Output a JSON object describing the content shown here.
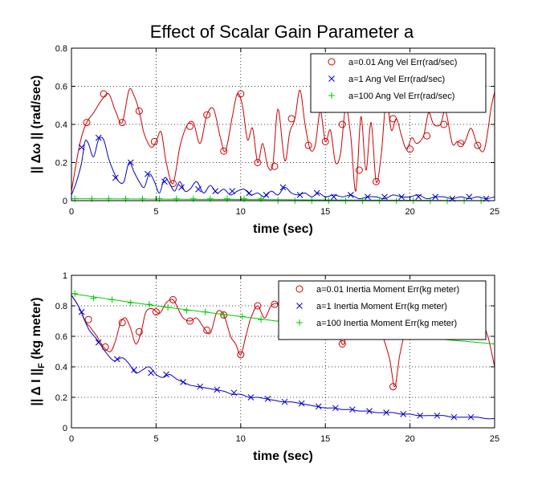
{
  "figure": {
    "title": "Effect of Scalar Gain Parameter a"
  },
  "chart_data": [
    {
      "type": "line",
      "title": "Effect of Scalar Gain Parameter a",
      "xlabel": "time (sec)",
      "ylabel": "|| Δω || (rad/sec)",
      "xlim": [
        0,
        25
      ],
      "ylim": [
        0,
        0.8
      ],
      "xticks": [
        "0",
        "5",
        "10",
        "15",
        "20",
        "25"
      ],
      "yticks": [
        "0",
        "0.2",
        "0.4",
        "0.6",
        "0.8"
      ],
      "grid": true,
      "legend_position": "top-right",
      "series": [
        {
          "name": "a=0.01 Ang Vel Err(rad/sec)",
          "color": "#cc0000",
          "marker": "circle",
          "x": [
            0,
            0.5,
            0.9,
            1.3,
            1.8,
            2.2,
            2.6,
            3.0,
            3.4,
            3.7,
            4.0,
            4.3,
            4.7,
            5.0,
            5.3,
            5.6,
            6.0,
            6.4,
            6.8,
            7.2,
            7.6,
            8.0,
            8.4,
            8.8,
            9.1,
            9.5,
            9.8,
            10.1,
            10.4,
            10.7,
            11.0,
            11.3,
            11.6,
            11.9,
            12.2,
            12.6,
            12.9,
            13.2,
            13.5,
            13.8,
            14.1,
            14.4,
            14.7,
            15.0,
            15.3,
            15.6,
            15.9,
            16.2,
            16.5,
            16.8,
            17.1,
            17.4,
            17.7,
            18.0,
            18.3,
            18.6,
            18.9,
            19.2,
            19.5,
            19.8,
            20.1,
            20.4,
            20.8,
            21.1,
            21.4,
            21.8,
            22.1,
            22.5,
            22.8,
            23.2,
            23.6,
            24.0,
            24.4,
            24.8,
            25.0
          ],
          "y": [
            0.05,
            0.3,
            0.41,
            0.46,
            0.53,
            0.56,
            0.47,
            0.41,
            0.58,
            0.55,
            0.47,
            0.35,
            0.28,
            0.31,
            0.36,
            0.2,
            0.09,
            0.28,
            0.39,
            0.41,
            0.3,
            0.45,
            0.48,
            0.33,
            0.26,
            0.44,
            0.56,
            0.5,
            0.32,
            0.38,
            0.2,
            0.3,
            0.18,
            0.19,
            0.48,
            0.21,
            0.36,
            0.43,
            0.58,
            0.4,
            0.27,
            0.29,
            0.47,
            0.31,
            0.37,
            0.2,
            0.25,
            0.49,
            0.34,
            0.05,
            0.44,
            0.16,
            0.41,
            0.1,
            0.24,
            0.53,
            0.37,
            0.43,
            0.34,
            0.27,
            0.33,
            0.3,
            0.34,
            0.46,
            0.4,
            0.4,
            0.47,
            0.3,
            0.31,
            0.3,
            0.38,
            0.29,
            0.27,
            0.49,
            0.57
          ],
          "marker_x": [
            0.9,
            1.9,
            3.0,
            4.0,
            4.9,
            6.0,
            7.0,
            8.0,
            9.0,
            10.0,
            11.0,
            12.0,
            13.0,
            14.0,
            15.0,
            16.0,
            17.0,
            18.0,
            19.0,
            20.0,
            21.0,
            22.0,
            23.0,
            24.0
          ],
          "marker_y": [
            0.41,
            0.56,
            0.41,
            0.47,
            0.31,
            0.09,
            0.39,
            0.45,
            0.26,
            0.56,
            0.2,
            0.18,
            0.43,
            0.29,
            0.31,
            0.4,
            0.16,
            0.1,
            0.43,
            0.27,
            0.34,
            0.4,
            0.3,
            0.29
          ]
        },
        {
          "name": "a=1 Ang Vel Err(rad/sec)",
          "color": "#0000cc",
          "marker": "x",
          "x": [
            0,
            0.3,
            0.6,
            0.8,
            1.0,
            1.3,
            1.6,
            1.9,
            2.2,
            2.5,
            2.8,
            3.1,
            3.4,
            3.7,
            4.0,
            4.3,
            4.6,
            4.9,
            5.2,
            5.5,
            5.8,
            6.1,
            6.4,
            6.7,
            7.0,
            7.4,
            7.8,
            8.2,
            8.6,
            9.0,
            9.4,
            9.8,
            10.2,
            10.6,
            11.0,
            11.4,
            11.8,
            12.2,
            12.6,
            13.0,
            13.4,
            13.8,
            14.2,
            14.6,
            15.0,
            15.5,
            16.0,
            16.5,
            17.0,
            17.5,
            18.0,
            18.5,
            19.0,
            19.5,
            20.0,
            20.5,
            21.0,
            21.5,
            22.0,
            22.5,
            23.0,
            23.5,
            24.0,
            24.5,
            25.0
          ],
          "y": [
            0.03,
            0.1,
            0.2,
            0.31,
            0.3,
            0.23,
            0.32,
            0.32,
            0.22,
            0.15,
            0.1,
            0.1,
            0.2,
            0.15,
            0.1,
            0.07,
            0.14,
            0.1,
            0.04,
            0.12,
            0.09,
            0.05,
            0.1,
            0.05,
            0.06,
            0.1,
            0.04,
            0.08,
            0.04,
            0.06,
            0.03,
            0.05,
            0.06,
            0.03,
            0.04,
            0.02,
            0.05,
            0.03,
            0.07,
            0.04,
            0.03,
            0.04,
            0.02,
            0.04,
            0.02,
            0.03,
            0.02,
            0.03,
            0.01,
            0.02,
            0.02,
            0.01,
            0.03,
            0.02,
            0.02,
            0.03,
            0.01,
            0.02,
            0.02,
            0.01,
            0.02,
            0.01,
            0.02,
            0.01,
            0.02
          ],
          "marker_x": [
            0.6,
            1.6,
            2.6,
            3.5,
            4.5,
            5.5,
            6.5,
            7.5,
            8.5,
            9.5,
            10.5,
            11.5,
            12.5,
            13.5,
            14.5,
            15.5,
            16.5,
            17.5,
            18.5,
            19.5,
            20.5,
            21.5,
            22.5,
            23.5,
            24.5
          ],
          "marker_y": [
            0.28,
            0.33,
            0.12,
            0.2,
            0.14,
            0.1,
            0.07,
            0.06,
            0.05,
            0.05,
            0.04,
            0.03,
            0.07,
            0.03,
            0.04,
            0.02,
            0.03,
            0.02,
            0.02,
            0.02,
            0.02,
            0.02,
            0.01,
            0.02,
            0.01
          ]
        },
        {
          "name": "a=100 Ang Vel Err(rad/sec)",
          "color": "#00cc00",
          "marker": "plus",
          "x": [
            0,
            25
          ],
          "y": [
            0.01,
            0.0
          ],
          "marker_x": [
            0.2,
            1.2,
            2.2,
            3.2,
            4.2,
            5.2,
            6.2,
            7.2,
            8.2,
            9.2,
            10.2,
            11.2,
            12.2,
            13.2,
            14.2,
            15.2,
            16.2,
            17.2,
            18.2,
            19.2,
            20.2,
            21.2,
            22.2,
            23.2,
            24.2
          ],
          "marker_y": [
            0.01,
            0.01,
            0.01,
            0.01,
            0.01,
            0.01,
            0.01,
            0.01,
            0.01,
            0.01,
            0.01,
            0.01,
            0.0,
            0.0,
            0.0,
            0.0,
            0.0,
            0.0,
            0.0,
            0.0,
            0.0,
            0.0,
            0.0,
            0.0,
            0.0
          ]
        }
      ]
    },
    {
      "type": "line",
      "title": "",
      "xlabel": "time (sec)",
      "ylabel": "|| Δ I ||F (kg meter)",
      "ylabel_main": "|| Δ I ||",
      "ylabel_sub": "F",
      "ylabel_unit": " (kg meter)",
      "xlim": [
        0,
        25
      ],
      "ylim": [
        0,
        1
      ],
      "xticks": [
        "0",
        "5",
        "10",
        "15",
        "20",
        "25"
      ],
      "yticks": [
        "0",
        "0.2",
        "0.4",
        "0.6",
        "0.8",
        "1"
      ],
      "grid": true,
      "legend_position": "top-right",
      "series": [
        {
          "name": "a=0.01 Inertia Moment Err(kg meter)",
          "color": "#cc0000",
          "marker": "circle",
          "x": [
            0,
            0.4,
            0.8,
            1.1,
            1.5,
            1.9,
            2.3,
            2.6,
            2.9,
            3.2,
            3.5,
            3.8,
            4.1,
            4.4,
            4.8,
            5.2,
            5.6,
            6.0,
            6.3,
            6.6,
            7.0,
            7.4,
            7.8,
            8.2,
            8.6,
            9.0,
            9.4,
            9.7,
            10.0,
            10.3,
            10.6,
            11.0,
            11.4,
            11.8,
            12.2,
            12.6,
            13.0,
            13.4,
            13.8,
            14.2,
            14.6,
            15.0,
            15.4,
            15.8,
            16.1,
            16.4,
            16.8,
            17.2,
            17.6,
            18.0,
            18.4,
            18.8,
            19.1,
            19.4,
            19.8,
            20.2,
            20.6,
            21.0,
            21.4,
            21.8,
            22.2,
            22.6,
            23.0,
            23.4,
            23.8,
            24.2,
            24.6,
            25.0
          ],
          "y": [
            0.87,
            0.8,
            0.7,
            0.66,
            0.6,
            0.53,
            0.5,
            0.57,
            0.69,
            0.72,
            0.65,
            0.55,
            0.62,
            0.76,
            0.78,
            0.75,
            0.82,
            0.84,
            0.78,
            0.72,
            0.7,
            0.72,
            0.66,
            0.62,
            0.76,
            0.74,
            0.6,
            0.55,
            0.48,
            0.6,
            0.72,
            0.8,
            0.72,
            0.8,
            0.81,
            0.73,
            0.65,
            0.68,
            0.72,
            0.66,
            0.62,
            0.66,
            0.7,
            0.6,
            0.55,
            0.72,
            0.76,
            0.72,
            0.7,
            0.74,
            0.6,
            0.45,
            0.27,
            0.48,
            0.66,
            0.73,
            0.71,
            0.66,
            0.68,
            0.72,
            0.64,
            0.6,
            0.68,
            0.72,
            0.74,
            0.7,
            0.6,
            0.4
          ],
          "marker_x": [
            1.0,
            2.0,
            3.0,
            4.0,
            5.0,
            6.0,
            7.0,
            8.0,
            9.0,
            10.0,
            11.0,
            12.0,
            16.0,
            19.0
          ],
          "marker_y": [
            0.71,
            0.53,
            0.69,
            0.63,
            0.76,
            0.84,
            0.7,
            0.64,
            0.74,
            0.48,
            0.8,
            0.81,
            0.55,
            0.27
          ]
        },
        {
          "name": "a=1 Inertia Moment Err(kg meter)",
          "color": "#0000cc",
          "marker": "x",
          "x": [
            0,
            0.5,
            1.0,
            1.5,
            2.0,
            2.5,
            3.0,
            3.4,
            3.8,
            4.2,
            4.6,
            5.0,
            5.4,
            5.8,
            6.2,
            6.6,
            7.0,
            7.5,
            8.0,
            8.5,
            9.0,
            9.5,
            10.0,
            10.5,
            11.0,
            11.5,
            12.0,
            12.5,
            13.0,
            13.5,
            14.0,
            14.5,
            15.0,
            15.5,
            16.0,
            16.5,
            17.0,
            17.5,
            18.0,
            18.5,
            19.0,
            19.5,
            20.0,
            20.5,
            21.0,
            21.5,
            22.0,
            22.5,
            23.0,
            23.5,
            24.0,
            24.5,
            25.0
          ],
          "y": [
            0.87,
            0.78,
            0.65,
            0.58,
            0.5,
            0.44,
            0.46,
            0.42,
            0.36,
            0.38,
            0.4,
            0.35,
            0.33,
            0.35,
            0.32,
            0.3,
            0.28,
            0.27,
            0.26,
            0.25,
            0.24,
            0.22,
            0.22,
            0.2,
            0.2,
            0.19,
            0.18,
            0.17,
            0.17,
            0.16,
            0.15,
            0.14,
            0.13,
            0.13,
            0.12,
            0.12,
            0.11,
            0.11,
            0.1,
            0.1,
            0.1,
            0.09,
            0.09,
            0.08,
            0.08,
            0.08,
            0.08,
            0.07,
            0.07,
            0.07,
            0.07,
            0.06,
            0.06
          ],
          "marker_x": [
            0.6,
            1.6,
            2.7,
            3.7,
            4.7,
            5.6,
            6.6,
            7.6,
            8.6,
            9.6,
            10.6,
            11.6,
            12.6,
            13.6,
            14.6,
            15.6,
            16.6,
            17.6,
            18.6,
            19.6,
            20.6,
            21.6,
            22.6,
            23.6
          ],
          "marker_y": [
            0.76,
            0.56,
            0.45,
            0.38,
            0.36,
            0.35,
            0.3,
            0.27,
            0.25,
            0.23,
            0.2,
            0.19,
            0.17,
            0.16,
            0.14,
            0.13,
            0.12,
            0.11,
            0.1,
            0.09,
            0.08,
            0.08,
            0.07,
            0.07
          ]
        },
        {
          "name": "a=100 Inertia Moment Err(kg meter)",
          "color": "#00cc00",
          "marker": "plus",
          "x": [
            0,
            5,
            10,
            15,
            20,
            25
          ],
          "y": [
            0.88,
            0.8,
            0.73,
            0.66,
            0.6,
            0.55
          ],
          "marker_x": [
            0.2,
            1.3,
            2.4,
            3.5,
            4.6,
            5.7,
            6.8,
            7.9,
            9.0,
            10.1,
            11.2,
            12.3
          ],
          "marker_y": [
            0.88,
            0.85,
            0.84,
            0.82,
            0.81,
            0.79,
            0.77,
            0.76,
            0.74,
            0.73,
            0.71,
            0.7
          ]
        }
      ]
    }
  ]
}
